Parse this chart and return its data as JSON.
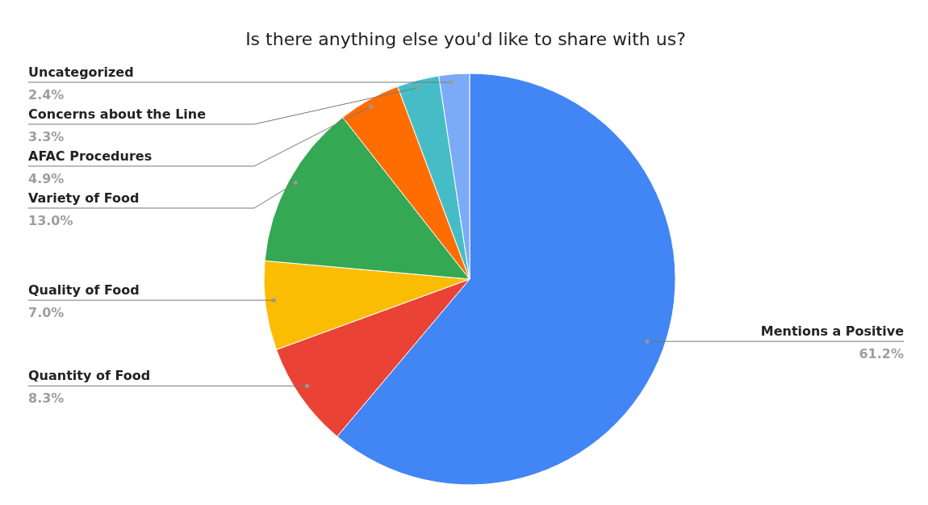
{
  "chart_data": {
    "type": "pie",
    "title": "Is there anything else you'd like to share with us?",
    "categories": [
      "Mentions a Positive",
      "Quantity of Food",
      "Quality of Food",
      "Variety of Food",
      "AFAC Procedures",
      "Concerns about the Line",
      "Uncategorized"
    ],
    "values": [
      61.2,
      8.3,
      7.0,
      13.0,
      4.9,
      3.3,
      2.4
    ],
    "value_labels": [
      "61.2%",
      "8.3%",
      "7.0%",
      "13.0%",
      "4.9%",
      "3.3%",
      "2.4%"
    ],
    "colors": [
      "#4285f4",
      "#ea4335",
      "#fbbc04",
      "#34a853",
      "#ff6d01",
      "#46bdc6",
      "#7baaf7"
    ],
    "legend": false
  }
}
